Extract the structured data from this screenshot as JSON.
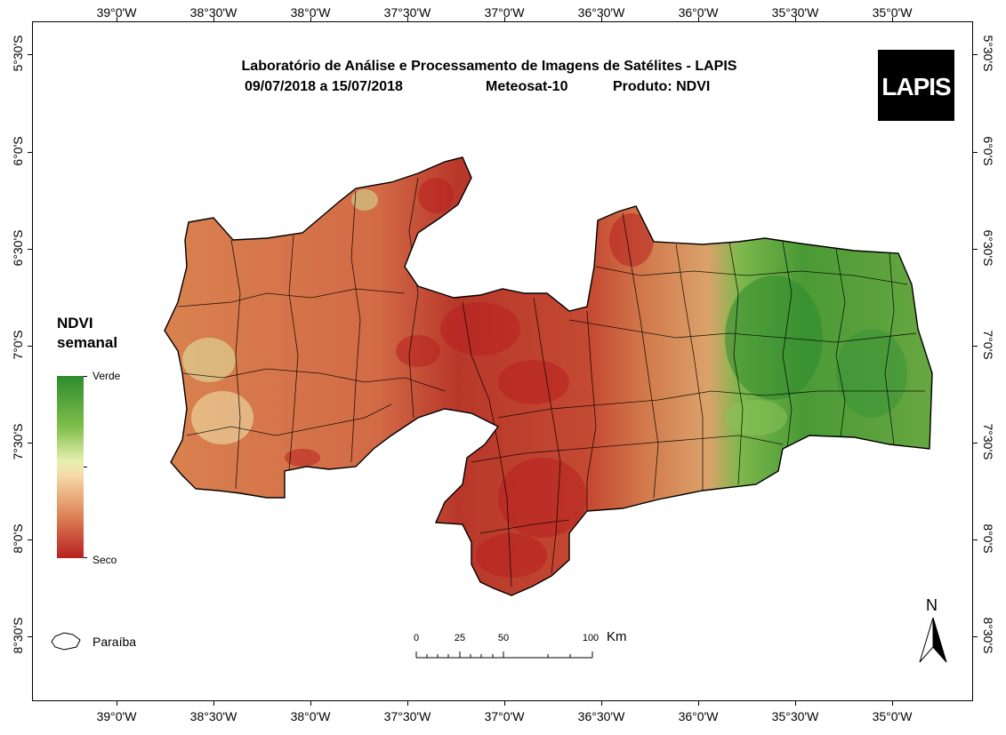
{
  "title": {
    "line1": "Laboratório de Análise e Processamento de Imagens de Satélites - LAPIS",
    "dates": "09/07/2018  a 15/07/2018",
    "satellite": "Meteosat-10",
    "product": "Produto: NDVI"
  },
  "logo": {
    "text": "LAPIS"
  },
  "longitude_labels": [
    "39°0'W",
    "38°30'W",
    "38°0'W",
    "37°30'W",
    "37°0'W",
    "36°30'W",
    "36°0'W",
    "35°30'W",
    "35°0'W"
  ],
  "latitude_labels": [
    "5°30'S",
    "6°0'S",
    "6°30'S",
    "7°0'S",
    "7°30'S",
    "8°0'S",
    "8°30'S"
  ],
  "legend": {
    "title_line1": "NDVI",
    "title_line2": "semanal",
    "high_label": "Verde",
    "low_label": "Seco",
    "colors": {
      "green": "#2e8b2e",
      "light": "#f3f0c0",
      "dry": "#b82020"
    }
  },
  "inset_legend": {
    "label": "Paraíba"
  },
  "scale_bar": {
    "ticks": [
      "0",
      "25",
      "50",
      "100"
    ],
    "unit": "Km"
  },
  "north_arrow": {
    "label": "N"
  }
}
